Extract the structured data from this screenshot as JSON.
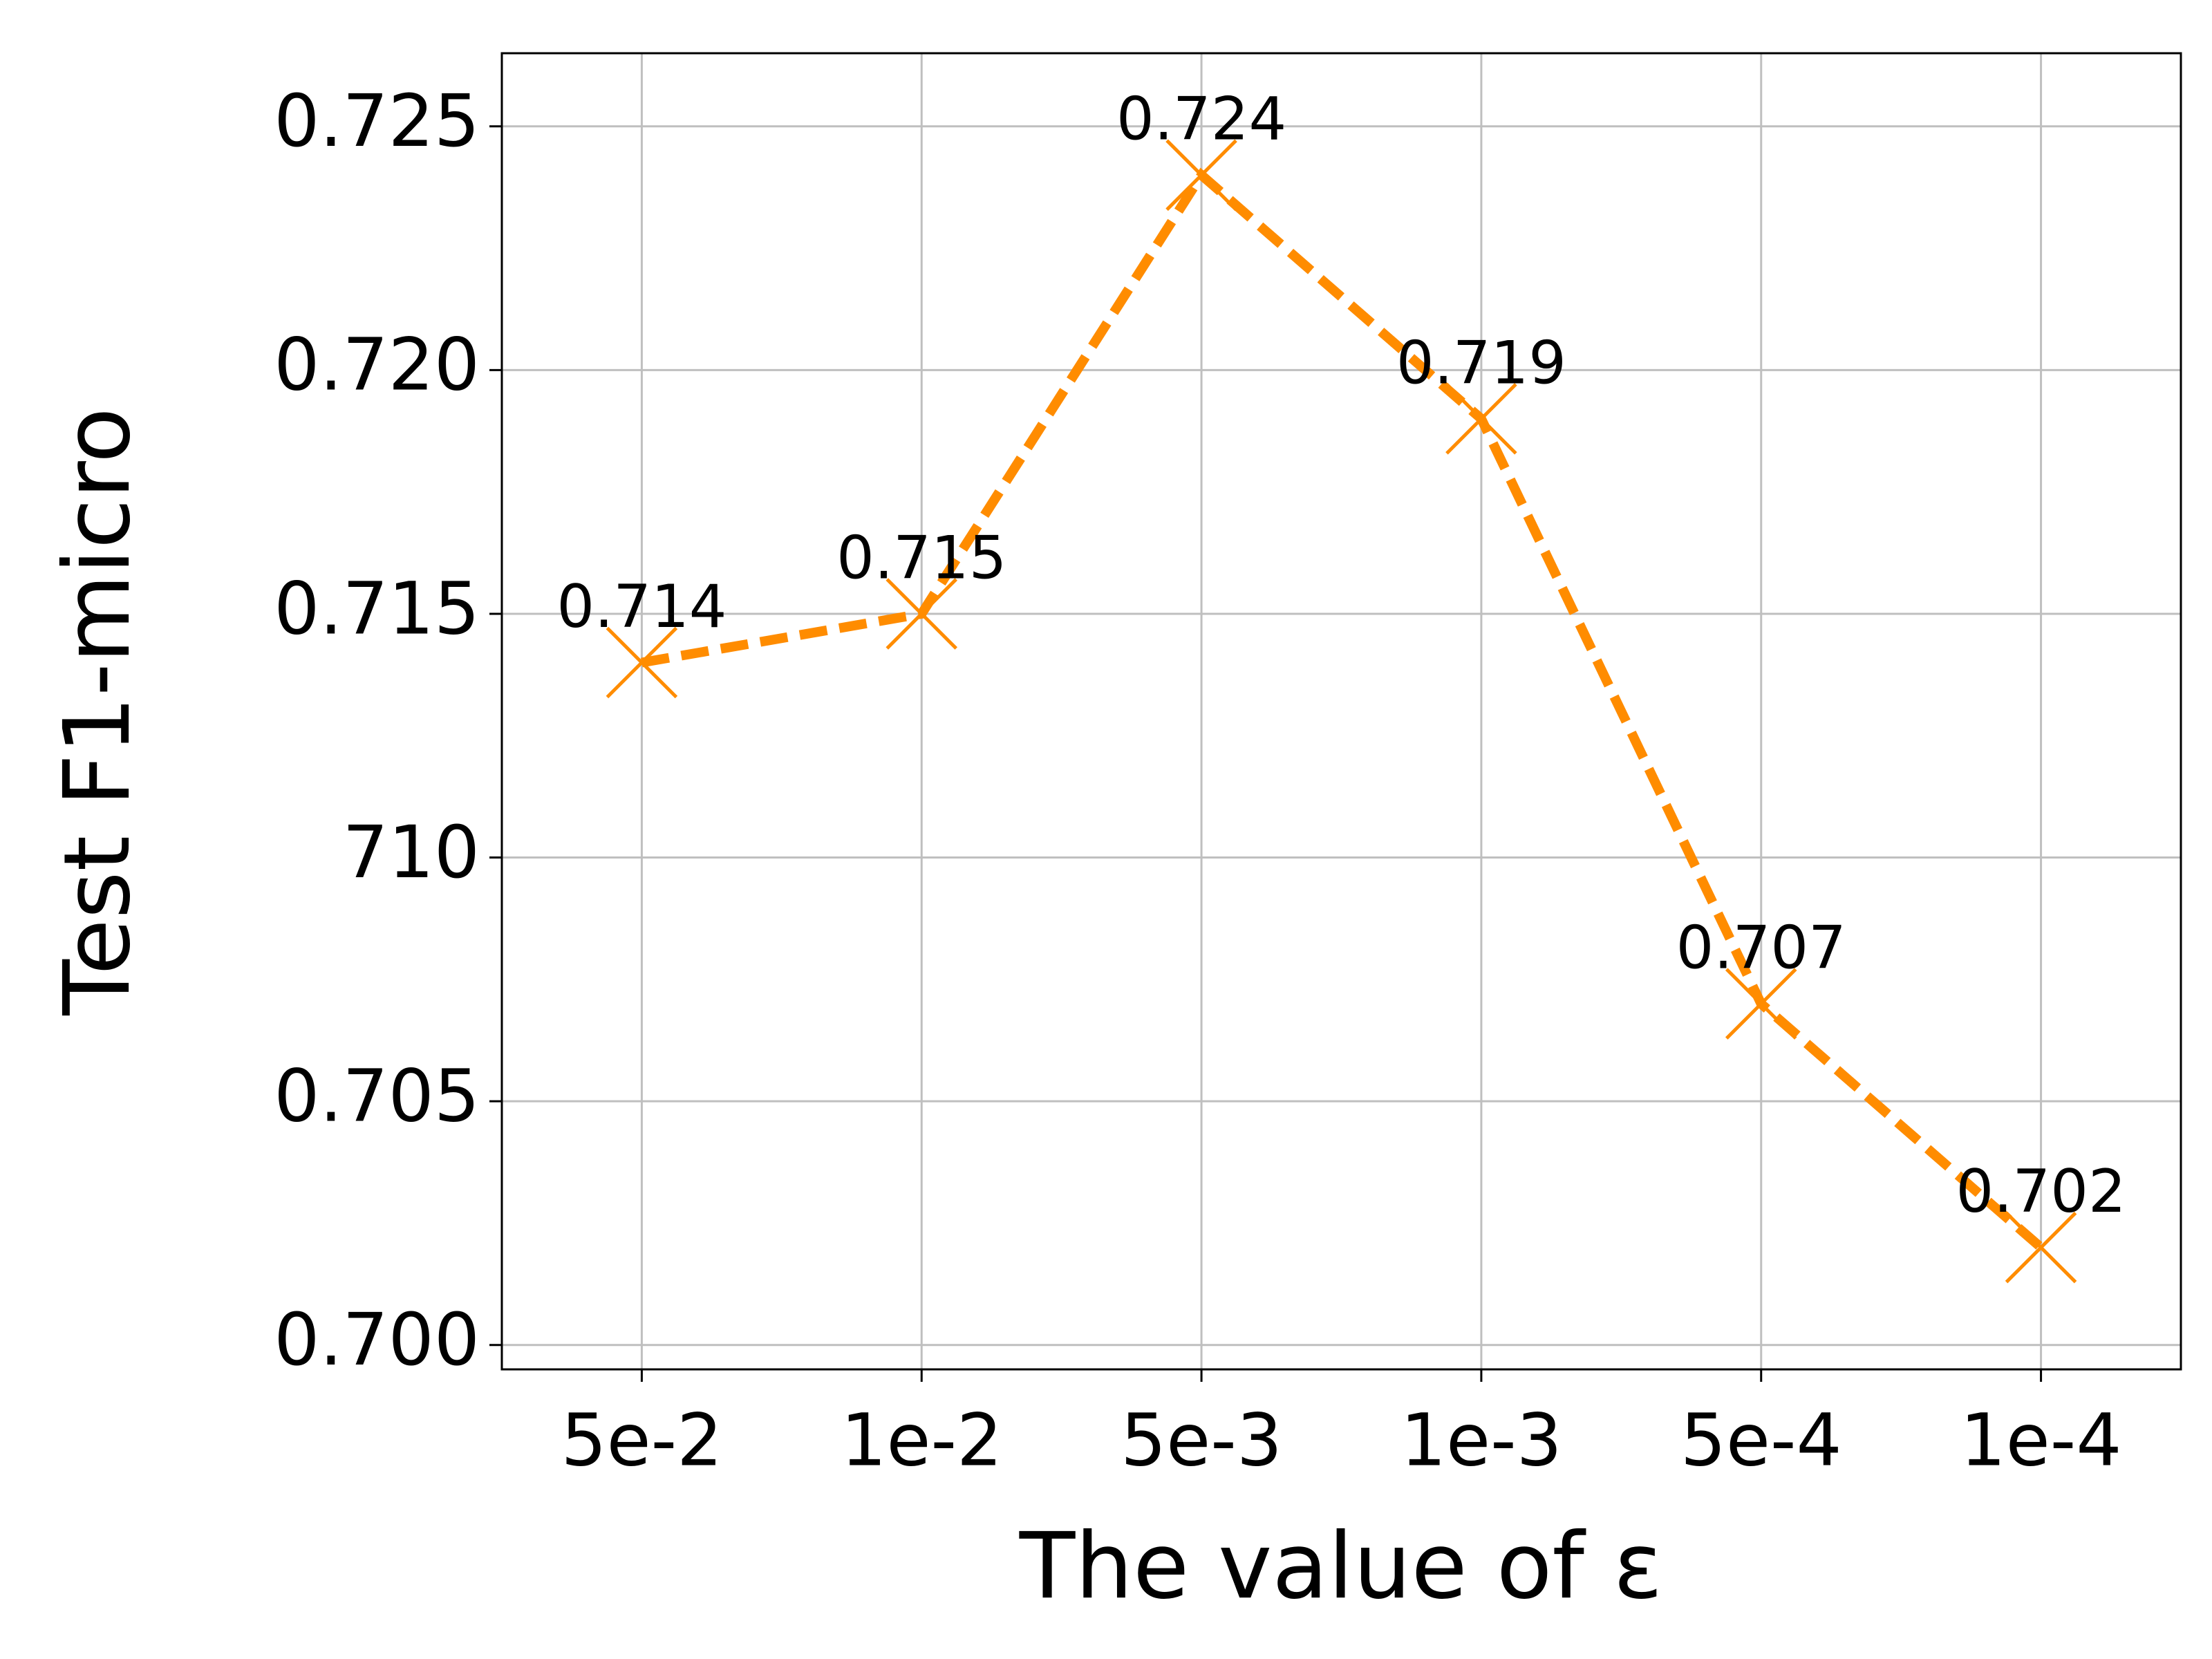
{
  "chart_data": {
    "type": "line",
    "xlabel": "The value of ε",
    "ylabel": "Test F1-micro",
    "categories": [
      "5e-2",
      "1e-2",
      "5e-3",
      "1e-3",
      "5e-4",
      "1e-4"
    ],
    "series": [
      {
        "color": "#ff8c00",
        "values": [
          0.714,
          0.715,
          0.724,
          0.719,
          0.707,
          0.702
        ]
      }
    ],
    "ylim": [
      0.6995,
      0.7265
    ],
    "yticks": [
      {
        "value": 0.7,
        "label": "0.700"
      },
      0.705,
      {
        "value": 0.71,
        "label": "710"
      },
      0.715,
      {
        "value": 0.72,
        "label": "0.720"
      },
      0.725
    ],
    "grid": true
  }
}
